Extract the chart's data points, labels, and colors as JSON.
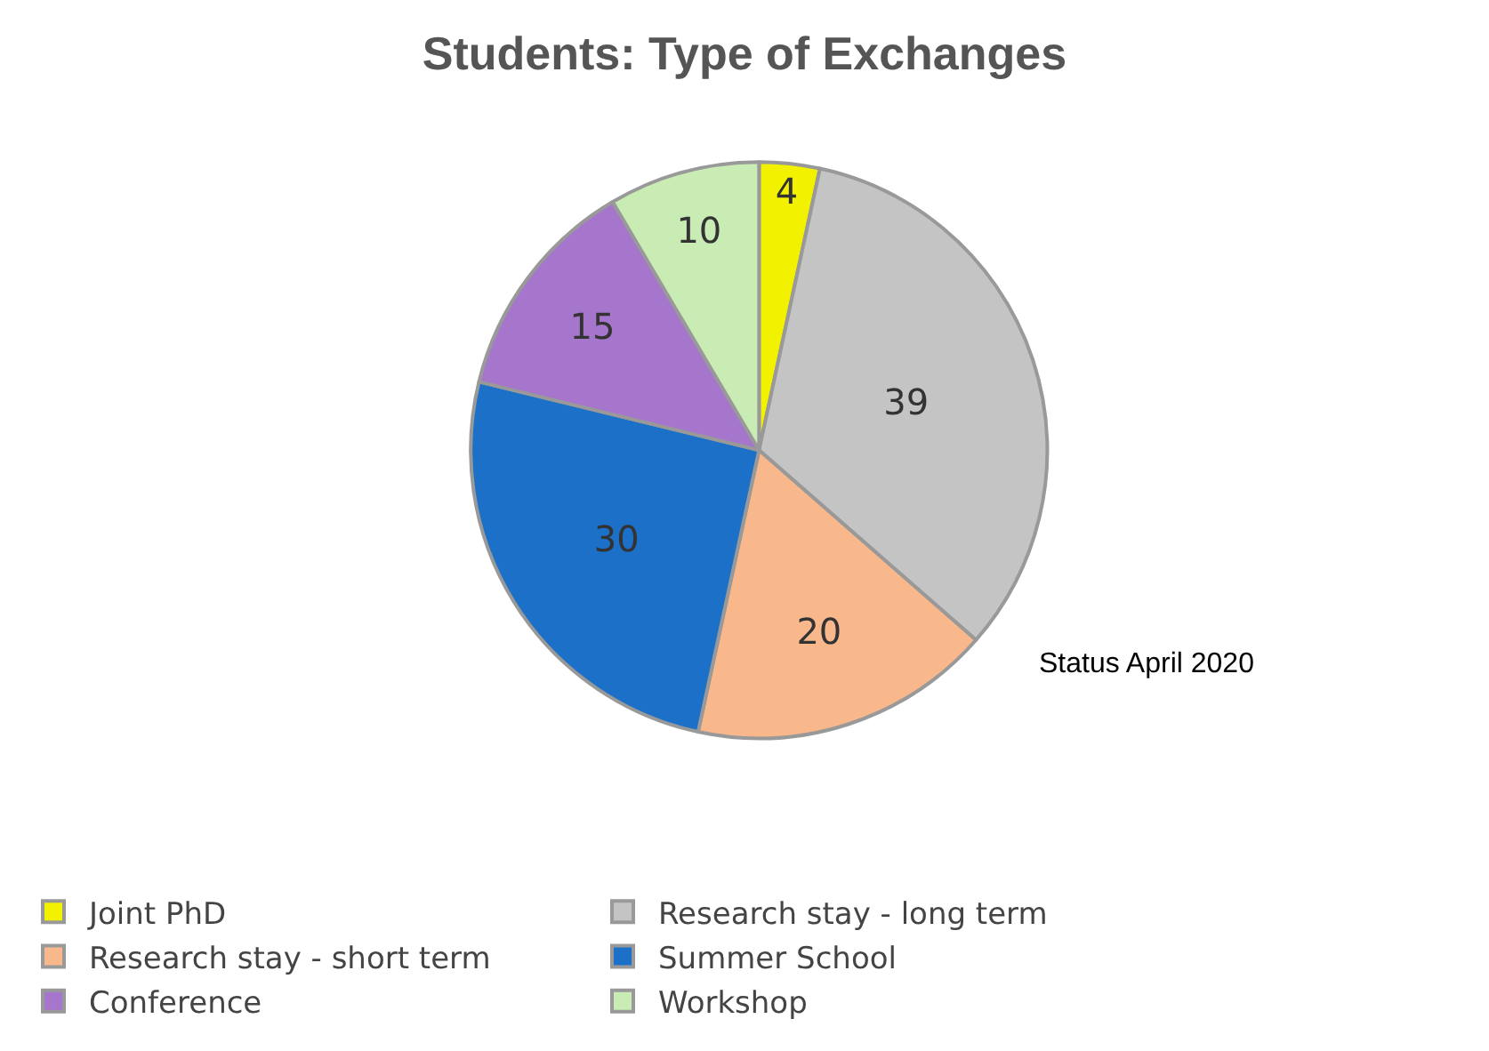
{
  "chart_data": {
    "type": "pie",
    "title": "Students: Type of Exchanges",
    "categories": [
      "Joint PhD",
      "Research stay - long term",
      "Research stay - short term",
      "Summer School",
      "Conference",
      "Workshop"
    ],
    "values": [
      4,
      39,
      20,
      30,
      15,
      10
    ],
    "colors": [
      "#f2f200",
      "#c4c4c4",
      "#f8b88c",
      "#1c70c8",
      "#a676cc",
      "#c8ecb4"
    ],
    "data_labels": true,
    "legend": "bottom",
    "annotations": [
      "Status April 2020"
    ]
  }
}
